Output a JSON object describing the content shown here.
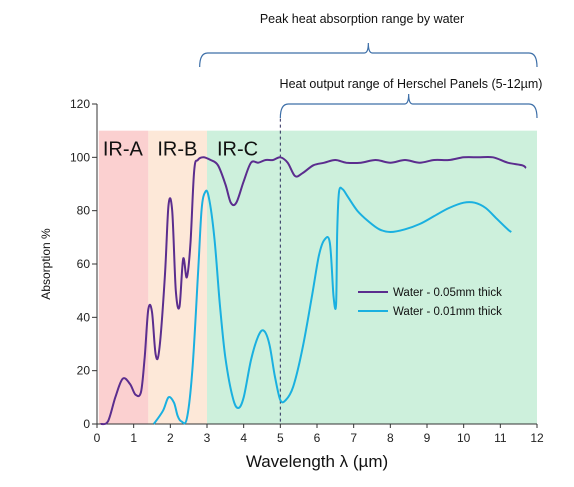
{
  "chart_data": {
    "type": "line",
    "xlabel": "Wavelength λ (µm)",
    "ylabel": "Absorption %",
    "xlim": [
      0,
      12
    ],
    "ylim": [
      0,
      120
    ],
    "x_ticks": [
      "0",
      "1",
      "2",
      "3",
      "4",
      "5",
      "6",
      "7",
      "8",
      "9",
      "10",
      "11",
      "12"
    ],
    "y_ticks": [
      "0",
      "20",
      "40",
      "60",
      "80",
      "100",
      "120"
    ],
    "regions": [
      {
        "label": "IR-A",
        "x": [
          0.05,
          1.4
        ],
        "color": "#fbd0d0"
      },
      {
        "label": "IR-B",
        "x": [
          1.4,
          3.0
        ],
        "color": "#fde8d8"
      },
      {
        "label": "IR-C",
        "x": [
          3.0,
          12.0
        ],
        "color": "#cdf0dc"
      }
    ],
    "region_top": 110,
    "marker_line_x": 5,
    "annotations": [
      {
        "text": "Peak heat absorption range by water",
        "x_range": [
          2.8,
          12
        ]
      },
      {
        "text": "Heat output range of Herschel Panels (5-12µm)",
        "x_range": [
          5,
          12
        ]
      }
    ],
    "legend_position": "right",
    "series": [
      {
        "name": "Water - 0.05mm thick",
        "color": "#5b2d8e",
        "points": [
          [
            0.1,
            0
          ],
          [
            0.3,
            1
          ],
          [
            0.5,
            10
          ],
          [
            0.7,
            17
          ],
          [
            0.9,
            15
          ],
          [
            1.05,
            11
          ],
          [
            1.2,
            12
          ],
          [
            1.3,
            25
          ],
          [
            1.4,
            43
          ],
          [
            1.5,
            42
          ],
          [
            1.6,
            26
          ],
          [
            1.7,
            28
          ],
          [
            1.85,
            55
          ],
          [
            1.95,
            82
          ],
          [
            2.05,
            80
          ],
          [
            2.15,
            50
          ],
          [
            2.25,
            44
          ],
          [
            2.35,
            62
          ],
          [
            2.45,
            55
          ],
          [
            2.55,
            68
          ],
          [
            2.65,
            95
          ],
          [
            2.75,
            99
          ],
          [
            2.9,
            100
          ],
          [
            3.1,
            99
          ],
          [
            3.3,
            97
          ],
          [
            3.5,
            90
          ],
          [
            3.65,
            83
          ],
          [
            3.8,
            83
          ],
          [
            4.0,
            91
          ],
          [
            4.2,
            98
          ],
          [
            4.4,
            98
          ],
          [
            4.6,
            99
          ],
          [
            4.8,
            99
          ],
          [
            5.0,
            100
          ],
          [
            5.2,
            98
          ],
          [
            5.4,
            93
          ],
          [
            5.6,
            94
          ],
          [
            5.9,
            97
          ],
          [
            6.2,
            98
          ],
          [
            6.5,
            99
          ],
          [
            6.8,
            98
          ],
          [
            7.2,
            98
          ],
          [
            7.6,
            99
          ],
          [
            8.0,
            98
          ],
          [
            8.4,
            99
          ],
          [
            8.8,
            98
          ],
          [
            9.2,
            99
          ],
          [
            9.6,
            99
          ],
          [
            10.0,
            100
          ],
          [
            10.4,
            100
          ],
          [
            10.8,
            100
          ],
          [
            11.2,
            98
          ],
          [
            11.6,
            97
          ],
          [
            11.7,
            96
          ]
        ]
      },
      {
        "name": "Water - 0.01mm thick",
        "color": "#1ab0e0",
        "points": [
          [
            1.55,
            0
          ],
          [
            1.8,
            5
          ],
          [
            1.95,
            10
          ],
          [
            2.1,
            8
          ],
          [
            2.2,
            3
          ],
          [
            2.3,
            1
          ],
          [
            2.45,
            2
          ],
          [
            2.6,
            20
          ],
          [
            2.75,
            55
          ],
          [
            2.85,
            80
          ],
          [
            2.95,
            87
          ],
          [
            3.05,
            85
          ],
          [
            3.2,
            70
          ],
          [
            3.35,
            45
          ],
          [
            3.5,
            25
          ],
          [
            3.7,
            10
          ],
          [
            3.85,
            6
          ],
          [
            4.0,
            10
          ],
          [
            4.2,
            24
          ],
          [
            4.4,
            33
          ],
          [
            4.55,
            35
          ],
          [
            4.7,
            30
          ],
          [
            4.85,
            18
          ],
          [
            5.0,
            9
          ],
          [
            5.15,
            9
          ],
          [
            5.35,
            14
          ],
          [
            5.6,
            28
          ],
          [
            5.85,
            47
          ],
          [
            6.05,
            63
          ],
          [
            6.2,
            69
          ],
          [
            6.35,
            68
          ],
          [
            6.45,
            48
          ],
          [
            6.52,
            45
          ],
          [
            6.55,
            72
          ],
          [
            6.6,
            87
          ],
          [
            6.7,
            88
          ],
          [
            6.85,
            85
          ],
          [
            7.1,
            80
          ],
          [
            7.4,
            76
          ],
          [
            7.7,
            73
          ],
          [
            8.0,
            72
          ],
          [
            8.4,
            73
          ],
          [
            8.8,
            75
          ],
          [
            9.2,
            78
          ],
          [
            9.6,
            81
          ],
          [
            10.0,
            83
          ],
          [
            10.3,
            83
          ],
          [
            10.6,
            81
          ],
          [
            10.9,
            77
          ],
          [
            11.2,
            73
          ],
          [
            11.3,
            72
          ]
        ]
      }
    ]
  }
}
